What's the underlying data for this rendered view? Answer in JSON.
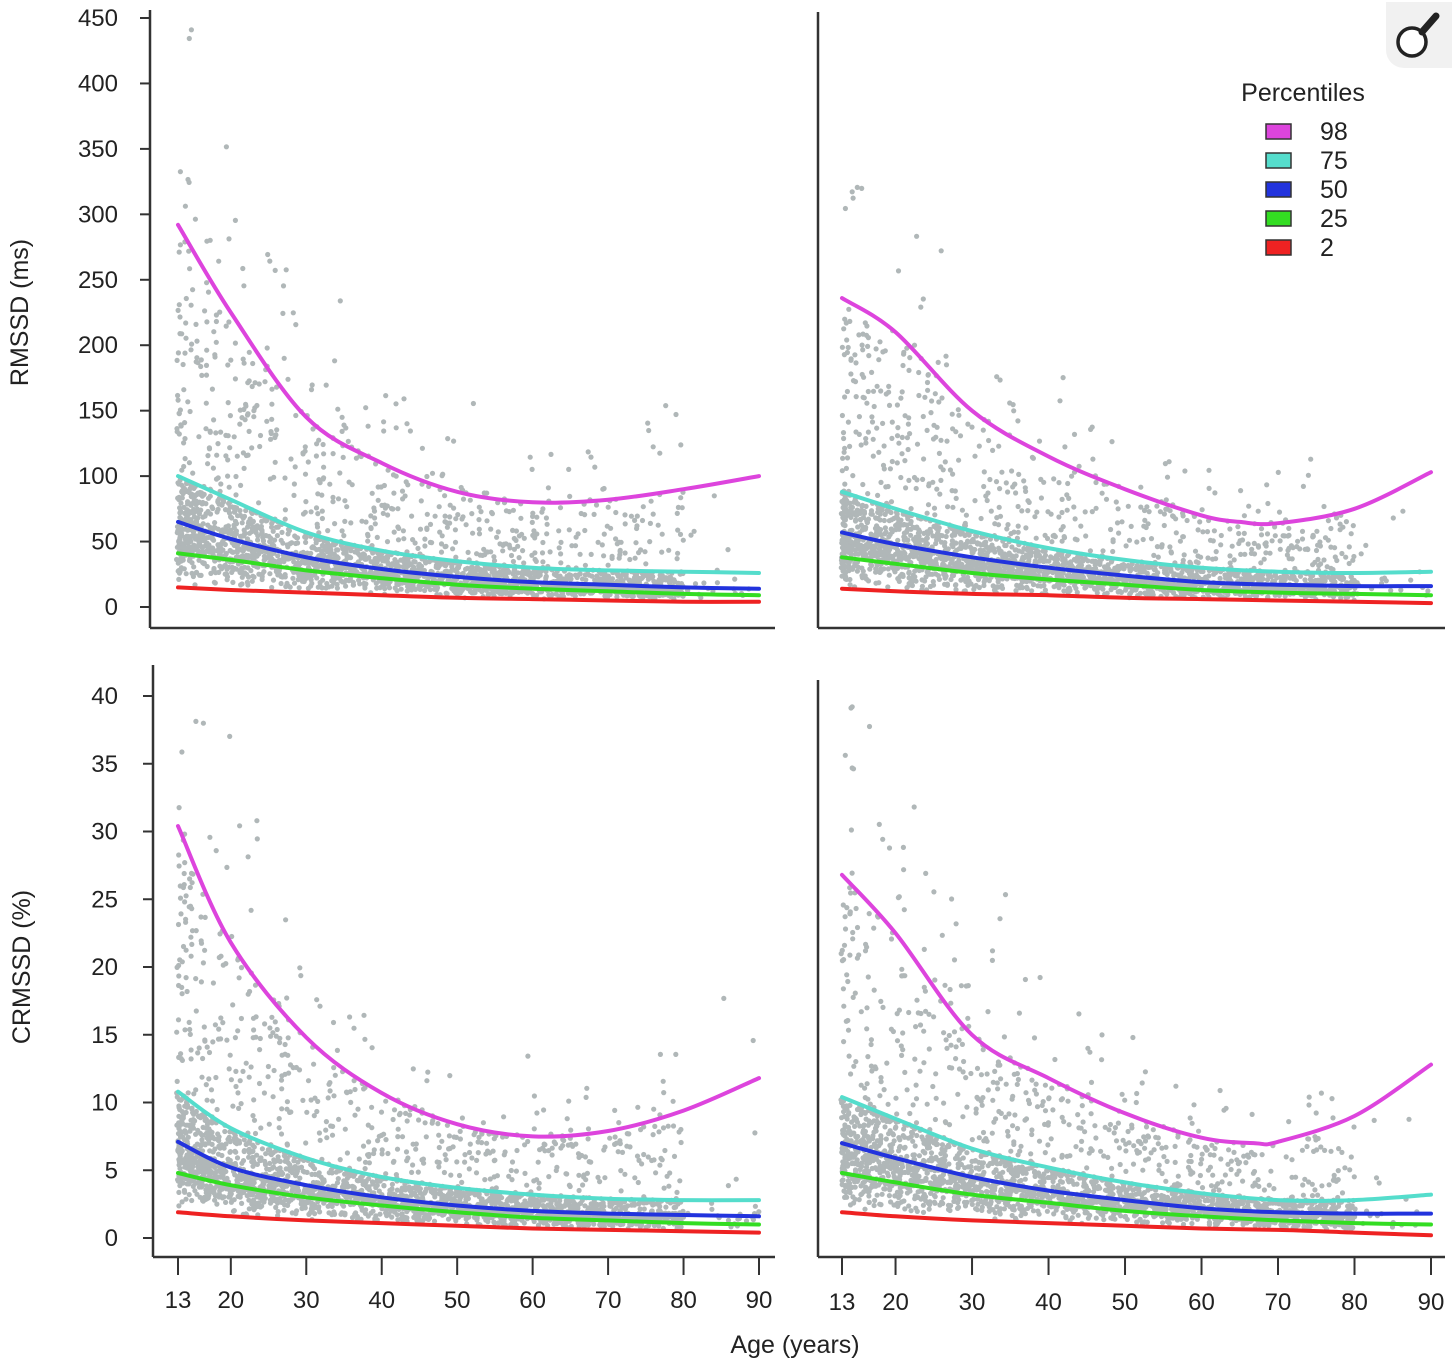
{
  "colors": {
    "p98": "#dd44dd",
    "p75": "#55ddcc",
    "p50": "#2233dd",
    "p25": "#33dd22",
    "p2": "#ee2222",
    "points": "#b0b7b8",
    "axis": "#333333"
  },
  "zoom_button": {
    "icon": "magnifier-icon"
  },
  "chart_data": [
    {
      "type": "scatter",
      "panel": "top-left",
      "title": "",
      "xlabel": "",
      "ylabel": "RMSSD (ms)",
      "xlim": [
        10,
        92
      ],
      "ylim": [
        0,
        450
      ],
      "yticks": [
        0,
        50,
        100,
        150,
        200,
        250,
        300,
        350,
        400,
        450
      ],
      "xticks": [],
      "series": [
        {
          "name": "98",
          "x": [
            13,
            20,
            30,
            40,
            50,
            60,
            70,
            80,
            90
          ],
          "y": [
            292,
            225,
            145,
            110,
            88,
            80,
            82,
            90,
            100
          ]
        },
        {
          "name": "75",
          "x": [
            13,
            20,
            30,
            40,
            50,
            60,
            70,
            80,
            90
          ],
          "y": [
            100,
            82,
            57,
            43,
            35,
            30,
            28,
            27,
            26
          ]
        },
        {
          "name": "50",
          "x": [
            13,
            20,
            30,
            40,
            50,
            60,
            70,
            80,
            90
          ],
          "y": [
            65,
            52,
            38,
            29,
            23,
            19,
            17,
            15,
            14
          ]
        },
        {
          "name": "25",
          "x": [
            13,
            20,
            30,
            40,
            50,
            60,
            70,
            80,
            90
          ],
          "y": [
            41,
            36,
            28,
            22,
            17,
            14,
            12,
            10,
            9
          ]
        },
        {
          "name": "2",
          "x": [
            13,
            20,
            30,
            40,
            50,
            60,
            70,
            80,
            90
          ],
          "y": [
            15,
            13,
            11,
            9,
            7,
            6,
            5,
            4,
            4
          ]
        }
      ]
    },
    {
      "type": "scatter",
      "panel": "top-right",
      "title": "",
      "xlabel": "",
      "ylabel": "",
      "xlim": [
        10,
        92
      ],
      "ylim": [
        0,
        450
      ],
      "yticks": [],
      "xticks": [],
      "legend": {
        "title": "Percentiles",
        "placement": "top-right",
        "entries": [
          "98",
          "75",
          "50",
          "25",
          "2"
        ]
      },
      "series": [
        {
          "name": "98",
          "x": [
            13,
            20,
            30,
            40,
            50,
            60,
            65,
            70,
            80,
            90
          ],
          "y": [
            236,
            210,
            150,
            115,
            90,
            70,
            65,
            64,
            75,
            103
          ]
        },
        {
          "name": "75",
          "x": [
            13,
            20,
            30,
            40,
            50,
            60,
            70,
            80,
            90
          ],
          "y": [
            88,
            75,
            58,
            45,
            36,
            30,
            27,
            26,
            27
          ]
        },
        {
          "name": "50",
          "x": [
            13,
            20,
            30,
            40,
            50,
            60,
            70,
            80,
            90
          ],
          "y": [
            57,
            48,
            38,
            30,
            24,
            19,
            17,
            16,
            16
          ]
        },
        {
          "name": "25",
          "x": [
            13,
            20,
            30,
            40,
            50,
            60,
            70,
            80,
            90
          ],
          "y": [
            38,
            33,
            26,
            21,
            17,
            13,
            11,
            10,
            9
          ]
        },
        {
          "name": "2",
          "x": [
            13,
            20,
            30,
            40,
            50,
            60,
            70,
            80,
            90
          ],
          "y": [
            14,
            12,
            10,
            9,
            7,
            6,
            5,
            4,
            3
          ]
        }
      ]
    },
    {
      "type": "scatter",
      "panel": "bottom-left",
      "title": "",
      "xlabel": "",
      "ylabel": "CRMSSD (%)",
      "xlim": [
        10,
        92
      ],
      "ylim": [
        0,
        40
      ],
      "yticks": [
        0,
        5,
        10,
        15,
        20,
        25,
        30,
        35,
        40
      ],
      "xticks": [
        "13",
        "20",
        "30",
        "40",
        "50",
        "60",
        "70",
        "80",
        "90"
      ],
      "series": [
        {
          "name": "98",
          "x": [
            13,
            20,
            30,
            40,
            50,
            60,
            70,
            80,
            90
          ],
          "y": [
            30.4,
            21.8,
            14.8,
            10.7,
            8.4,
            7.5,
            7.9,
            9.4,
            11.8
          ]
        },
        {
          "name": "75",
          "x": [
            13,
            20,
            30,
            40,
            50,
            60,
            70,
            80,
            90
          ],
          "y": [
            10.8,
            8.1,
            5.9,
            4.5,
            3.7,
            3.2,
            2.9,
            2.8,
            2.8
          ]
        },
        {
          "name": "50",
          "x": [
            13,
            20,
            30,
            40,
            50,
            60,
            70,
            80,
            90
          ],
          "y": [
            7.1,
            5.2,
            3.9,
            3.0,
            2.4,
            2.0,
            1.8,
            1.7,
            1.6
          ]
        },
        {
          "name": "25",
          "x": [
            13,
            20,
            30,
            40,
            50,
            60,
            70,
            80,
            90
          ],
          "y": [
            4.8,
            3.9,
            3.0,
            2.4,
            1.9,
            1.5,
            1.3,
            1.1,
            1.0
          ]
        },
        {
          "name": "2",
          "x": [
            13,
            20,
            30,
            40,
            50,
            60,
            70,
            80,
            90
          ],
          "y": [
            1.9,
            1.6,
            1.3,
            1.1,
            0.9,
            0.7,
            0.6,
            0.5,
            0.4
          ]
        }
      ]
    },
    {
      "type": "scatter",
      "panel": "bottom-right",
      "title": "",
      "xlabel": "",
      "ylabel": "",
      "xlim": [
        10,
        92
      ],
      "ylim": [
        0,
        40
      ],
      "yticks": [],
      "xticks": [
        "13",
        "20",
        "30",
        "40",
        "50",
        "60",
        "70",
        "80",
        "90"
      ],
      "series": [
        {
          "name": "98",
          "x": [
            13,
            20,
            30,
            40,
            50,
            60,
            67,
            70,
            80,
            90
          ],
          "y": [
            26.8,
            22.5,
            15.0,
            11.8,
            9.2,
            7.4,
            7.0,
            7.1,
            9.0,
            12.8
          ]
        },
        {
          "name": "75",
          "x": [
            13,
            20,
            30,
            40,
            50,
            60,
            70,
            80,
            90
          ],
          "y": [
            10.4,
            8.8,
            6.6,
            5.2,
            4.1,
            3.3,
            2.8,
            2.8,
            3.2
          ]
        },
        {
          "name": "50",
          "x": [
            13,
            20,
            30,
            40,
            50,
            60,
            70,
            80,
            90
          ],
          "y": [
            7.0,
            5.9,
            4.5,
            3.5,
            2.8,
            2.2,
            1.9,
            1.8,
            1.8
          ]
        },
        {
          "name": "25",
          "x": [
            13,
            20,
            30,
            40,
            50,
            60,
            70,
            80,
            90
          ],
          "y": [
            4.8,
            4.1,
            3.2,
            2.6,
            2.0,
            1.6,
            1.3,
            1.1,
            1.0
          ]
        },
        {
          "name": "2",
          "x": [
            13,
            20,
            30,
            40,
            50,
            60,
            70,
            80,
            90
          ],
          "y": [
            1.9,
            1.6,
            1.3,
            1.1,
            0.9,
            0.7,
            0.6,
            0.4,
            0.2
          ]
        }
      ]
    }
  ],
  "shared_xlabel": "Age (years)"
}
